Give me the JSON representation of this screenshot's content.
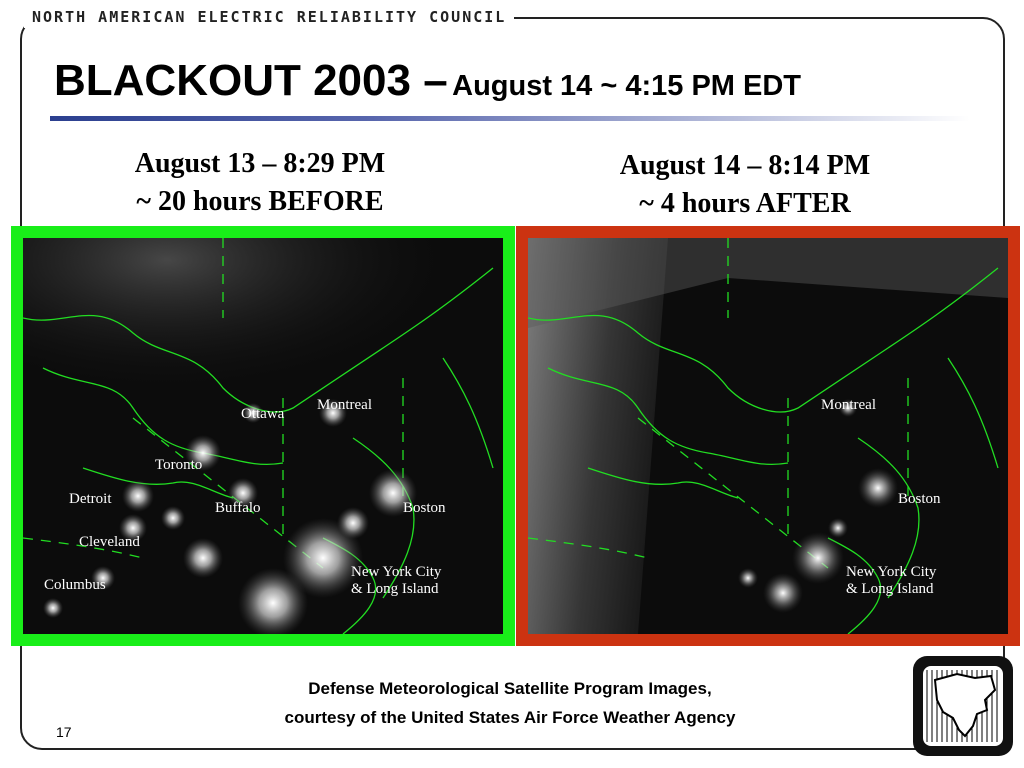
{
  "header": {
    "organization": "NORTH AMERICAN ELECTRIC RELIABILITY COUNCIL",
    "title_main": "BLACKOUT 2003 –",
    "title_sub": "August 14 ~ 4:15 PM EDT"
  },
  "before": {
    "caption_line1": "August 13 – 8:29 PM",
    "caption_line2": "~ 20 hours BEFORE",
    "border_color": "#19ee19",
    "cities": {
      "ottawa": "Ottawa",
      "montreal": "Montreal",
      "toronto": "Toronto",
      "detroit": "Detroit",
      "buffalo": "Buffalo",
      "boston": "Boston",
      "cleveland": "Cleveland",
      "nyc_line1": "New York City",
      "nyc_line2": "& Long Island",
      "columbus": "Columbus"
    }
  },
  "after": {
    "caption_line1": "August 14 – 8:14 PM",
    "caption_line2": "~ 4 hours AFTER",
    "border_color": "#cc3311",
    "cities": {
      "montreal": "Montreal",
      "boston": "Boston",
      "nyc_line1": "New York City",
      "nyc_line2": "& Long Island"
    }
  },
  "footer": {
    "credit_line1": "Defense Meteorological Satellite Program Images,",
    "credit_line2": "courtesy of the United States Air Force Weather Agency",
    "slide_number": "17"
  }
}
